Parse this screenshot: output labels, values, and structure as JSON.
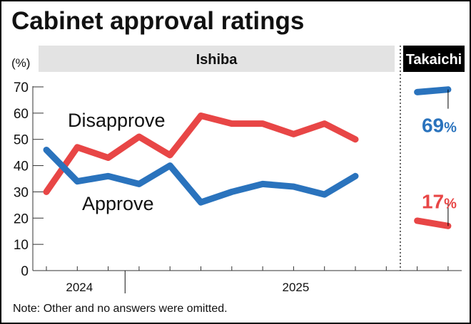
{
  "title": "Cabinet approval ratings",
  "note": "Note: Other and no answers were omitted.",
  "chart_data": {
    "type": "line",
    "ylabel": "(%)",
    "ylim": [
      0,
      70
    ],
    "yticks": [
      0,
      10,
      20,
      30,
      40,
      50,
      60,
      70
    ],
    "grid": false,
    "periods": [
      {
        "label": "Ishiba",
        "points": 11
      },
      {
        "label": "Takaichi",
        "points": 2
      }
    ],
    "year_labels": [
      {
        "label": "2024",
        "index": 1
      },
      {
        "label": "2025",
        "index": 8
      }
    ],
    "series": [
      {
        "name": "Disapprove",
        "color": "#e84646",
        "ishiba": [
          30,
          47,
          43,
          51,
          44,
          59,
          56,
          56,
          52,
          56,
          50
        ],
        "takaichi": [
          19,
          17
        ],
        "latest_label": "17",
        "unit": "%"
      },
      {
        "name": "Approve",
        "color": "#2a73bd",
        "ishiba": [
          46,
          34,
          36,
          33,
          40,
          26,
          30,
          33,
          32,
          29,
          36
        ],
        "takaichi": [
          68,
          69
        ],
        "latest_label": "69",
        "unit": "%"
      }
    ]
  }
}
